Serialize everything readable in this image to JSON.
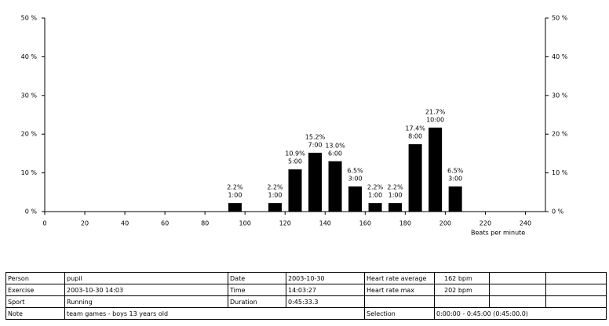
{
  "chart_data": {
    "type": "bar",
    "xlabel": "Beats per minute",
    "x": [
      95,
      115,
      125,
      135,
      145,
      155,
      165,
      175,
      185,
      195,
      205
    ],
    "values": [
      2.2,
      2.2,
      10.9,
      15.2,
      13.0,
      6.5,
      2.2,
      2.2,
      17.4,
      21.7,
      6.5
    ],
    "value_labels": [
      "2.2%",
      "2.2%",
      "10.9%",
      "15.2%",
      "13.0%",
      "6.5%",
      "2.2%",
      "2.2%",
      "17.4%",
      "21.7%",
      "6.5%"
    ],
    "durations": [
      "1:00",
      "1:00",
      "5:00",
      "7:00",
      "6:00",
      "3:00",
      "1:00",
      "1:00",
      "8:00",
      "10:00",
      "3:00"
    ],
    "color": "#000000",
    "xlim": [
      0,
      250
    ],
    "xticks": [
      0,
      20,
      40,
      60,
      80,
      100,
      120,
      140,
      160,
      180,
      200,
      220,
      240
    ],
    "ylim": [
      0,
      50
    ],
    "yticks": [
      {
        "value": 0,
        "label": "0 %"
      },
      {
        "value": 10,
        "label": "10 %"
      },
      {
        "value": 20,
        "label": "20 %"
      },
      {
        "value": 30,
        "label": "30 %"
      },
      {
        "value": 40,
        "label": "40 %"
      },
      {
        "value": 50,
        "label": "50 %"
      }
    ]
  },
  "table": {
    "rows": [
      [
        "Person",
        "pupil",
        "Date",
        "2003-10-30",
        "Heart rate average",
        "162 bpm"
      ],
      [
        "Exercise",
        "2003-10-30 14:03",
        "Time",
        "14:03:27",
        "Heart rate max",
        "202 bpm"
      ],
      [
        "Sport",
        "Running",
        "Duration",
        "0:45:33.3"
      ],
      [
        "Note",
        "team games - boys 13 years old",
        "Selection",
        "0:00:00 - 0:45:00 (0:45:00.0)"
      ]
    ]
  }
}
